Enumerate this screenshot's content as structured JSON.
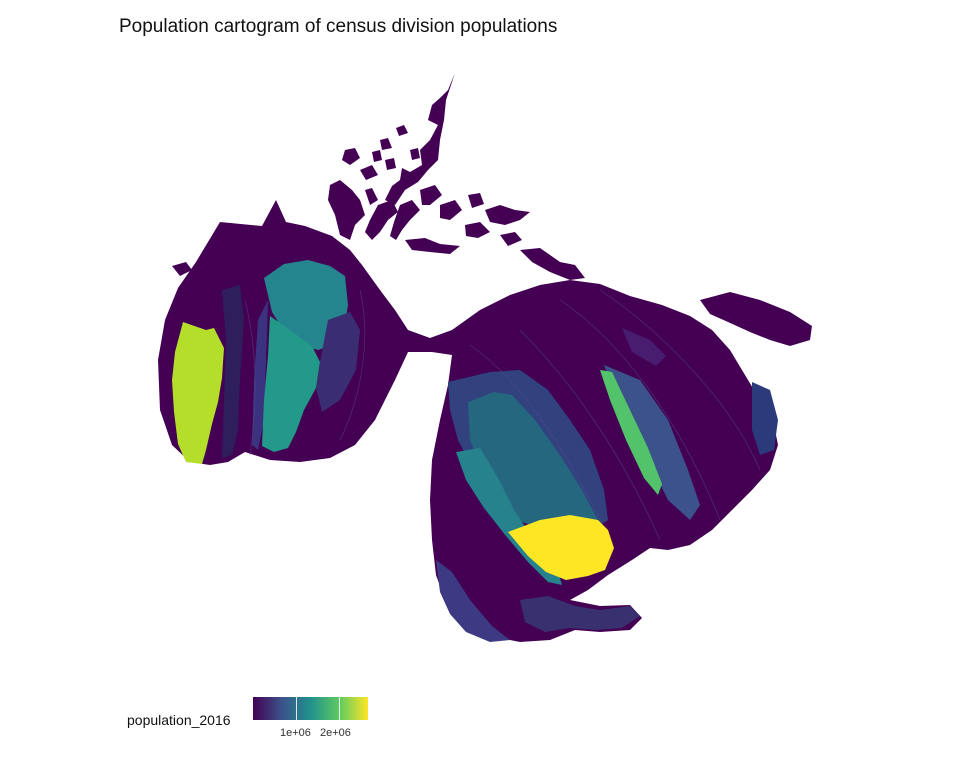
{
  "title": "Population cartogram of census division populations",
  "legend": {
    "label": "population_2016",
    "tick_labels": [
      "1e+06",
      "2e+06"
    ],
    "colors": [
      "#440154",
      "#3b528b",
      "#21918c",
      "#5ec962",
      "#fde725"
    ]
  }
}
